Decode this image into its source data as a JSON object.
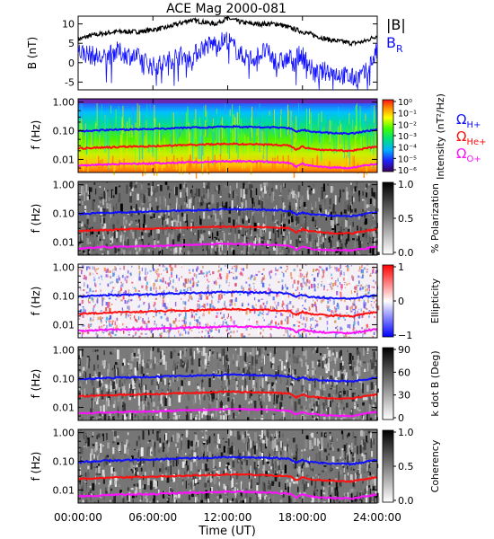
{
  "figure": {
    "title": "ACE Mag 2000-081",
    "x_axis_label": "Time (UT)",
    "x_ticks": [
      "00:00:00",
      "06:00:00",
      "12:00:00",
      "18:00:00",
      "24:00:00"
    ]
  },
  "chart_data": [
    {
      "type": "line",
      "panel": "magnetic-field",
      "ylabel": "B (nT)",
      "ylim": [
        -7,
        12
      ],
      "y_ticks": [
        "10",
        "5",
        "0",
        "-5"
      ],
      "xlim_hours": [
        0,
        24
      ],
      "colors": {
        "B": "#000000",
        "BR": "#1010ff"
      },
      "series": [
        {
          "name": "|B|",
          "x_hours": [
            0,
            1,
            2,
            3,
            4,
            5,
            6,
            7,
            8,
            9,
            10,
            11,
            12,
            13,
            14,
            15,
            16,
            17,
            18,
            19,
            20,
            21,
            22,
            23,
            24
          ],
          "values": [
            6,
            7,
            7.5,
            8,
            8,
            8,
            8.5,
            9,
            10,
            11,
            10.5,
            10,
            11.5,
            10.5,
            10,
            10,
            10,
            9,
            8,
            7,
            6,
            5.5,
            5,
            5.5,
            7
          ]
        },
        {
          "name": "B_R",
          "x_hours": [
            0,
            1,
            2,
            3,
            4,
            5,
            6,
            7,
            8,
            9,
            10,
            11,
            12,
            13,
            14,
            15,
            16,
            17,
            18,
            19,
            20,
            21,
            22,
            23,
            24
          ],
          "values": [
            3,
            2,
            1,
            3,
            2,
            1,
            -1,
            0,
            2,
            1,
            4,
            5,
            6,
            2,
            1,
            3,
            0,
            1,
            2,
            -3,
            -2,
            -3,
            -4,
            -3,
            3
          ]
        }
      ]
    },
    {
      "type": "heatmap",
      "panel": "intensity",
      "ylabel": "f (Hz)",
      "yscale": "log",
      "ylim": [
        0.0035,
        1.3
      ],
      "y_ticks": [
        "1.00",
        "0.10",
        "0.01"
      ],
      "colorbar": {
        "label": "Intensity (nT²/Hz)",
        "ticks": [
          "10⁰",
          "10⁻¹",
          "10⁻²",
          "10⁻³",
          "10⁻⁴",
          "10⁻⁵",
          "10⁻⁶"
        ],
        "range": [
          1e-06,
          1
        ],
        "scale": "log",
        "colormap": "rainbow"
      },
      "overlays": [
        "H+",
        "He+",
        "O+"
      ]
    },
    {
      "type": "heatmap",
      "panel": "polarization",
      "ylabel": "f (Hz)",
      "yscale": "log",
      "ylim": [
        0.0035,
        1.3
      ],
      "y_ticks": [
        "1.00",
        "0.10",
        "0.01"
      ],
      "colorbar": {
        "label": "% Polarization",
        "ticks": [
          "1.0",
          "0.5",
          "0.0"
        ],
        "range": [
          0,
          1
        ],
        "colormap": "gray"
      },
      "overlays": [
        "H+",
        "He+",
        "O+"
      ]
    },
    {
      "type": "heatmap",
      "panel": "ellipticity",
      "ylabel": "f (Hz)",
      "yscale": "log",
      "ylim": [
        0.0035,
        1.3
      ],
      "y_ticks": [
        "1.00",
        "0.10",
        "0.01"
      ],
      "colorbar": {
        "label": "Ellipticity",
        "ticks": [
          "1",
          "0",
          "−1"
        ],
        "range": [
          -1,
          1
        ],
        "colormap": "blue-white-red"
      },
      "overlays": [
        "H+",
        "He+",
        "O+"
      ]
    },
    {
      "type": "heatmap",
      "panel": "k-dot-b",
      "ylabel": "f (Hz)",
      "yscale": "log",
      "ylim": [
        0.0035,
        1.3
      ],
      "y_ticks": [
        "1.00",
        "0.10",
        "0.01"
      ],
      "colorbar": {
        "label": "k dot B (Deg)",
        "ticks": [
          "90",
          "60",
          "30",
          "0"
        ],
        "range": [
          0,
          90
        ],
        "colormap": "gray"
      },
      "overlays": [
        "H+",
        "He+",
        "O+"
      ]
    },
    {
      "type": "heatmap",
      "panel": "coherency",
      "ylabel": "f (Hz)",
      "yscale": "log",
      "ylim": [
        0.0035,
        1.3
      ],
      "y_ticks": [
        "1.00",
        "0.10",
        "0.01"
      ],
      "colorbar": {
        "label": "Coherency",
        "ticks": [
          "1.0",
          "0.5",
          "0.0"
        ],
        "range": [
          0,
          1
        ],
        "colormap": "gray"
      },
      "overlays": [
        "H+",
        "He+",
        "O+"
      ]
    }
  ],
  "gyrofrequencies": {
    "x_hours": [
      0,
      2,
      4,
      6,
      8,
      10,
      12,
      14,
      16,
      17,
      17.5,
      18,
      18.5,
      20,
      22,
      24
    ],
    "H+": [
      0.095,
      0.105,
      0.11,
      0.115,
      0.125,
      0.13,
      0.14,
      0.135,
      0.13,
      0.12,
      0.09,
      0.11,
      0.095,
      0.085,
      0.08,
      0.11
    ],
    "He+": [
      0.024,
      0.026,
      0.028,
      0.029,
      0.031,
      0.033,
      0.035,
      0.034,
      0.032,
      0.03,
      0.022,
      0.028,
      0.024,
      0.021,
      0.02,
      0.028
    ],
    "O+": [
      0.006,
      0.0066,
      0.007,
      0.0072,
      0.0078,
      0.0082,
      0.0087,
      0.0085,
      0.008,
      0.0075,
      0.0055,
      0.007,
      0.006,
      0.0053,
      0.005,
      0.007
    ],
    "colors": {
      "H+": "#1010ff",
      "He+": "#ff1010",
      "O+": "#ff10ff"
    }
  },
  "legend": {
    "B_main": "|B|",
    "BR_main": "B",
    "BR_sub": "R",
    "omega": "Ω",
    "H_sub": "H+",
    "He_sub": "He+",
    "O_sub": "O+"
  }
}
